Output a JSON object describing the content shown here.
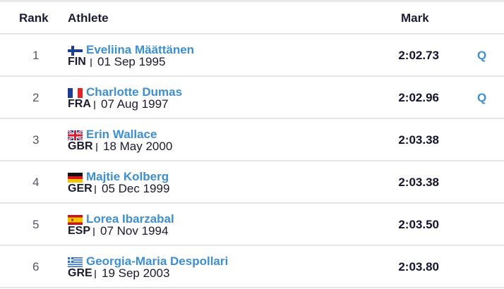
{
  "headers": {
    "rank": "Rank",
    "athlete": "Athlete",
    "mark": "Mark"
  },
  "colors": {
    "link": "#3d8fd0",
    "divider": "#e6e7ec"
  },
  "rows": [
    {
      "rank": "1",
      "name": "Eveliina Määttänen",
      "country": "FIN",
      "dob": "01 Sep 1995",
      "mark": "2:02.73",
      "q": "Q",
      "flag": "finland-flag-icon"
    },
    {
      "rank": "2",
      "name": "Charlotte Dumas",
      "country": "FRA",
      "dob": "07 Aug 1997",
      "mark": "2:02.96",
      "q": "Q",
      "flag": "france-flag-icon"
    },
    {
      "rank": "3",
      "name": "Erin Wallace",
      "country": "GBR",
      "dob": "18 May 2000",
      "mark": "2:03.38",
      "q": "",
      "flag": "great-britain-flag-icon"
    },
    {
      "rank": "4",
      "name": "Majtie Kolberg",
      "country": "GER",
      "dob": "05 Dec 1999",
      "mark": "2:03.38",
      "q": "",
      "flag": "germany-flag-icon"
    },
    {
      "rank": "5",
      "name": "Lorea Ibarzabal",
      "country": "ESP",
      "dob": "07 Nov 1994",
      "mark": "2:03.50",
      "q": "",
      "flag": "spain-flag-icon"
    },
    {
      "rank": "6",
      "name": "Georgia-Maria Despollari",
      "country": "GRE",
      "dob": "19 Sep 2003",
      "mark": "2:03.80",
      "q": "",
      "flag": "greece-flag-icon"
    }
  ]
}
